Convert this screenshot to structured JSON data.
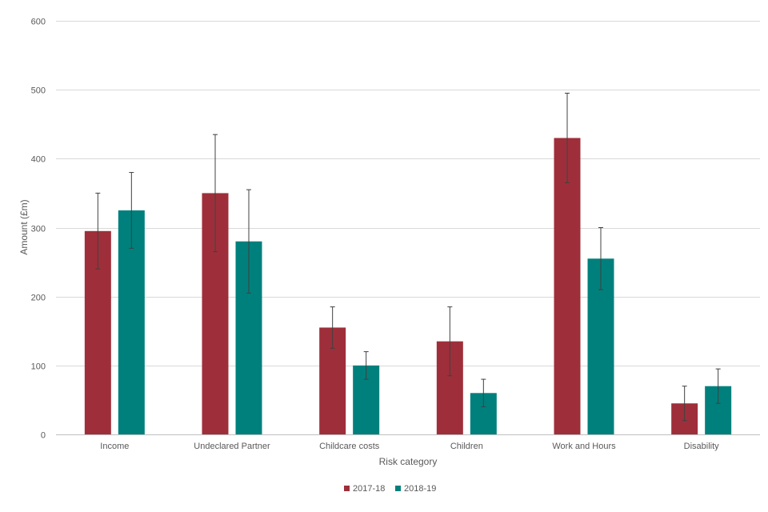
{
  "chart_data": {
    "type": "bar",
    "xlabel": "Risk category",
    "ylabel": "Amount (£m)",
    "ylim": [
      0,
      600
    ],
    "yticks": [
      0,
      100,
      200,
      300,
      400,
      500,
      600
    ],
    "grid": true,
    "legend_position": "bottom",
    "categories": [
      "Income",
      "Undeclared Partner",
      "Childcare costs",
      "Children",
      "Work and Hours",
      "Disability"
    ],
    "series": [
      {
        "name": "2017-18",
        "color": "#9e2f3a",
        "values": [
          295,
          350,
          155,
          135,
          430,
          45
        ],
        "error_low": [
          240,
          265,
          125,
          85,
          365,
          20
        ],
        "error_high": [
          350,
          435,
          185,
          185,
          495,
          70
        ]
      },
      {
        "name": "2018-19",
        "color": "#00807d",
        "values": [
          325,
          280,
          100,
          60,
          255,
          70
        ],
        "error_low": [
          270,
          205,
          80,
          40,
          210,
          45
        ],
        "error_high": [
          380,
          355,
          120,
          80,
          300,
          95
        ]
      }
    ]
  }
}
